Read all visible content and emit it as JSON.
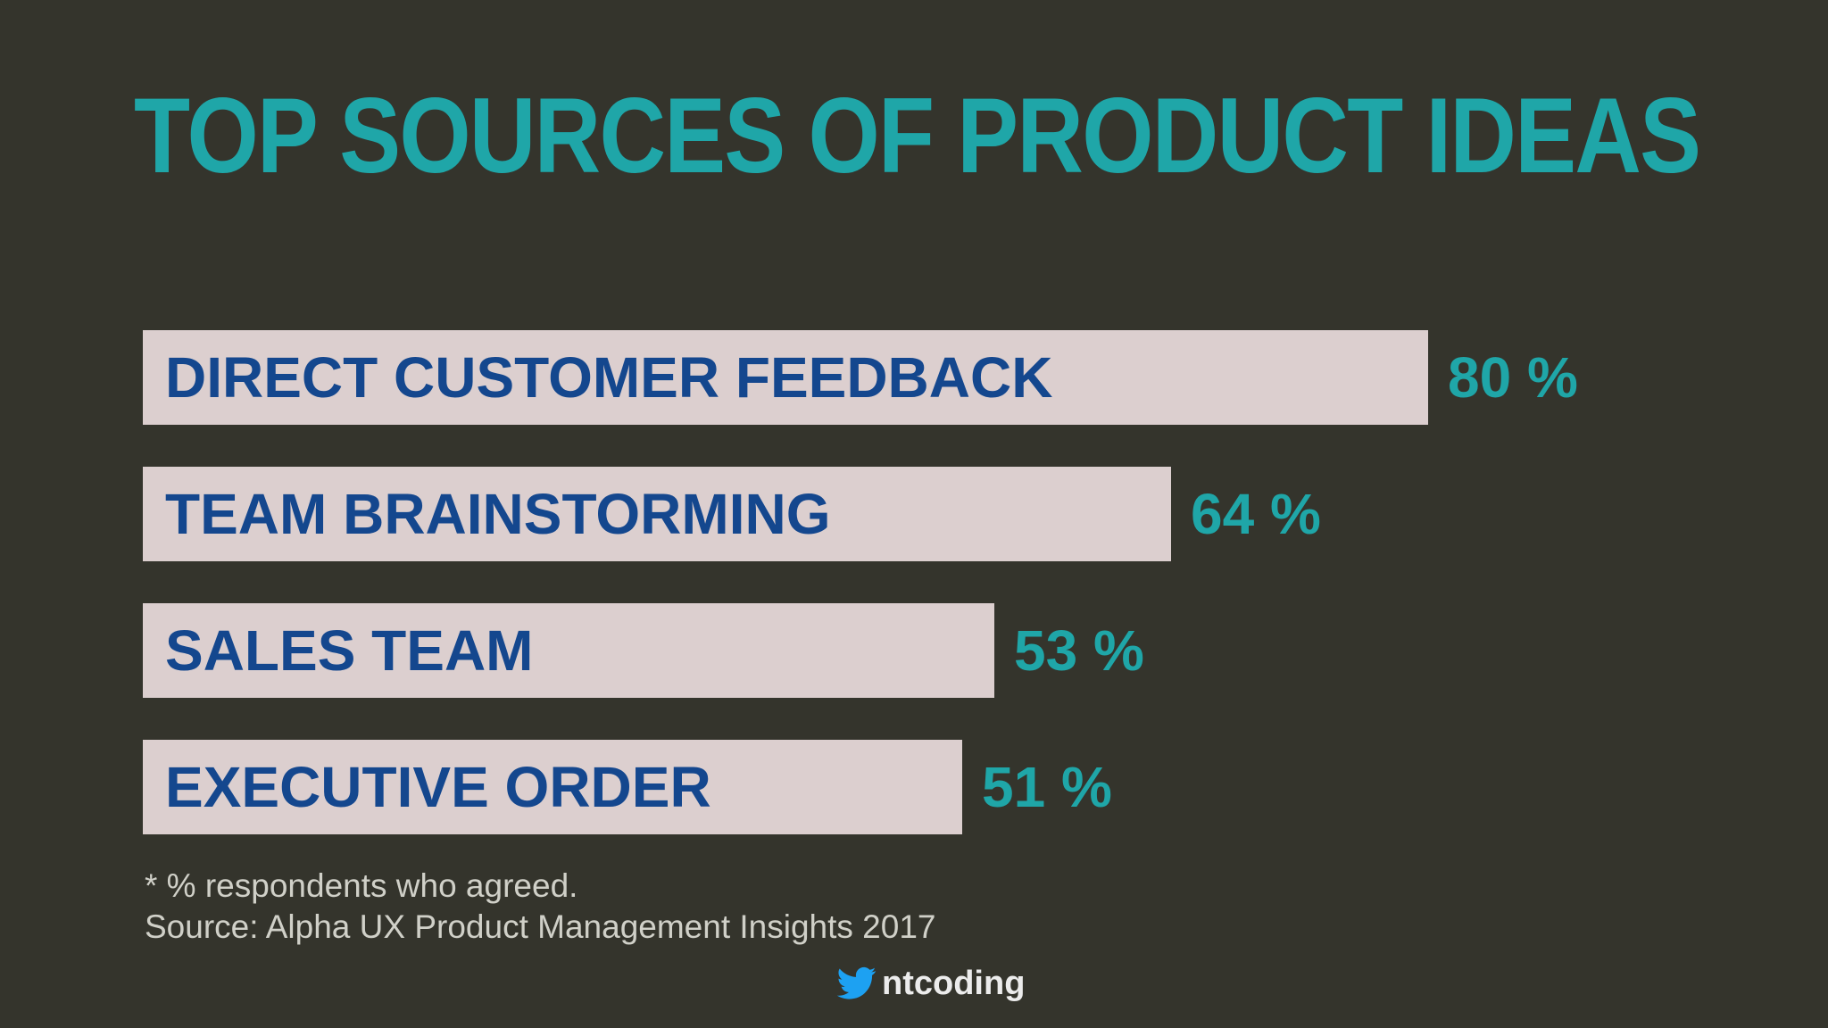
{
  "title": "TOP SOURCES OF PRODUCT IDEAS",
  "chart_data": {
    "type": "bar",
    "orientation": "horizontal",
    "title": "TOP SOURCES OF PRODUCT IDEAS",
    "categories": [
      "DIRECT CUSTOMER FEEDBACK",
      "TEAM BRAINSTORMING",
      "SALES TEAM",
      "EXECUTIVE ORDER"
    ],
    "values": [
      80,
      64,
      53,
      51
    ],
    "value_labels": [
      "80 %",
      "64 %",
      "53 %",
      "51 %"
    ],
    "unit": "%",
    "xlim": [
      0,
      100
    ],
    "grid": false,
    "legend": "none"
  },
  "notes": {
    "footnote": "* % respondents who agreed.",
    "source": "Source: Alpha UX Product Management Insights 2017"
  },
  "handle": {
    "icon": "twitter-bird-icon",
    "text": "ntcoding"
  },
  "colors": {
    "background": "#34342c",
    "title": "#1fa6a8",
    "bar": "#dccfcf",
    "bar_label": "#14478e",
    "value": "#1fa6a8",
    "twitter": "#1da1f2"
  }
}
